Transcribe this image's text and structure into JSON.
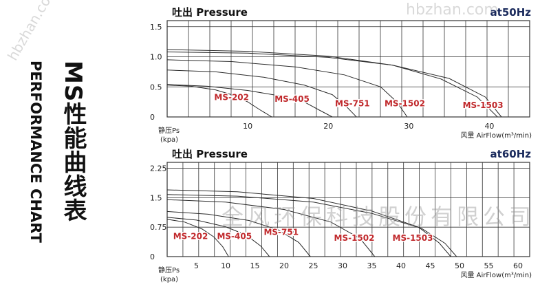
{
  "titles": {
    "main_cn": "MS性能曲线表",
    "main_en": "PERFORMANCE CHART"
  },
  "watermarks": {
    "company": "全风环保科技股份有限公司",
    "site_top": "hbzhan.com",
    "site_left": "hbzhan.com"
  },
  "chart_data": [
    {
      "type": "line",
      "title": "吐出 Pressure",
      "frequency": "at50Hz",
      "ylabel": "静压Ps",
      "ylabel_unit": "(kpa)",
      "xlabel": "风量 AirFlow(m³/min)",
      "xlim": [
        0,
        45
      ],
      "ylim": [
        0,
        1.6
      ],
      "yticks": [
        0,
        0.5,
        1.0,
        1.5
      ],
      "ytick_labels": [
        "0",
        "0.5",
        "1.0",
        "1.5"
      ],
      "xticks": [
        10,
        20,
        30,
        40
      ],
      "grid": true,
      "series": [
        {
          "name": "MS-202",
          "label_at": [
            8.0,
            0.28
          ],
          "x": [
            0,
            3,
            6,
            8,
            10,
            11.5,
            13
          ],
          "y": [
            0.53,
            0.51,
            0.45,
            0.37,
            0.25,
            0.12,
            0
          ]
        },
        {
          "name": "MS-405",
          "label_at": [
            15.5,
            0.25
          ],
          "x": [
            0,
            5,
            10,
            14,
            17,
            18.8,
            20.5
          ],
          "y": [
            0.54,
            0.51,
            0.44,
            0.35,
            0.25,
            0.12,
            0
          ]
        },
        {
          "name": "MS-751",
          "label_at": [
            23,
            0.18
          ],
          "x": [
            0,
            6,
            12,
            17,
            20.5,
            22.2,
            23.5
          ],
          "y": [
            0.78,
            0.75,
            0.66,
            0.53,
            0.37,
            0.18,
            0
          ]
        },
        {
          "name": "MS-1502",
          "label_at": [
            29.5,
            0.18
          ],
          "x": [
            0,
            8,
            16,
            22,
            26.5,
            28.5,
            29.8
          ],
          "y": [
            0.95,
            0.92,
            0.83,
            0.7,
            0.5,
            0.25,
            0
          ]
        },
        {
          "name": "MS-1503",
          "label_at": [
            39.2,
            0.15
          ],
          "x": [
            0,
            10,
            20,
            28,
            34,
            38.5,
            41
          ],
          "y": [
            1.12,
            1.09,
            1.01,
            0.86,
            0.63,
            0.33,
            0
          ]
        }
      ],
      "extra_lines": [
        {
          "x": [
            0,
            10,
            20,
            28,
            35,
            39.5,
            41.5
          ],
          "y": [
            1.08,
            1.06,
            0.99,
            0.86,
            0.64,
            0.33,
            0
          ]
        }
      ]
    },
    {
      "type": "line",
      "title": "吐出 Pressure",
      "frequency": "at60Hz",
      "ylabel": "静压Ps",
      "ylabel_unit": "(kpa)",
      "xlabel": "风量 AirFlow(m³/min)",
      "xlim": [
        0,
        62
      ],
      "ylim": [
        0,
        2.4
      ],
      "yticks": [
        0,
        0.75,
        1.5,
        2.25
      ],
      "ytick_labels": [
        "0",
        "0.75",
        "1.5",
        "2.25"
      ],
      "xticks": [
        5,
        10,
        15,
        20,
        25,
        30,
        35,
        40,
        45,
        50,
        55,
        60
      ],
      "grid": true,
      "series": [
        {
          "name": "MS-202",
          "label_at": [
            4,
            0.45
          ],
          "x": [
            0,
            3,
            6,
            8,
            9.5,
            10.5
          ],
          "y": [
            0.95,
            0.88,
            0.7,
            0.5,
            0.25,
            0
          ]
        },
        {
          "name": "MS-405",
          "label_at": [
            11.5,
            0.45
          ],
          "x": [
            0,
            5,
            10,
            13.5,
            16,
            17.5
          ],
          "y": [
            1.0,
            0.93,
            0.76,
            0.55,
            0.27,
            0
          ]
        },
        {
          "name": "MS-751",
          "label_at": [
            19.5,
            0.55
          ],
          "x": [
            0,
            7,
            14,
            19,
            22.5,
            24.5
          ],
          "y": [
            1.15,
            1.08,
            0.92,
            0.68,
            0.36,
            0
          ]
        },
        {
          "name": "MS-1502",
          "label_at": [
            32,
            0.4
          ],
          "x": [
            0,
            10,
            20,
            28,
            33,
            35.5
          ],
          "y": [
            1.45,
            1.39,
            1.2,
            0.88,
            0.46,
            0
          ]
        },
        {
          "name": "MS-1503",
          "label_at": [
            42,
            0.4
          ],
          "x": [
            0,
            12,
            25,
            35,
            43,
            46.5,
            48.5
          ],
          "y": [
            1.7,
            1.65,
            1.48,
            1.16,
            0.75,
            0.35,
            0
          ]
        }
      ],
      "extra_lines": [
        {
          "x": [
            0,
            12,
            25,
            35,
            43.5,
            47.5,
            49.5
          ],
          "y": [
            1.58,
            1.54,
            1.39,
            1.1,
            0.72,
            0.34,
            0
          ]
        }
      ]
    }
  ],
  "colors": {
    "series_label": "#c0282b",
    "title_text": "#111111",
    "frequency_text": "#1a2a5c",
    "grid": "#333333",
    "curve": "#2a2a2a"
  }
}
